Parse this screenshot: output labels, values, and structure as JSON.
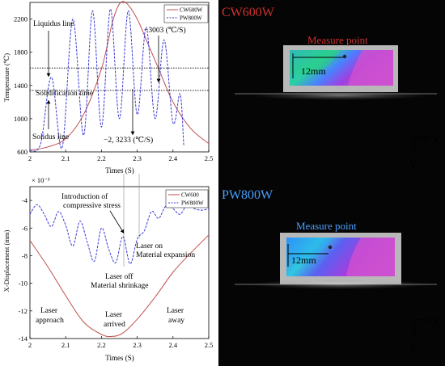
{
  "colors": {
    "cw": "#c0504d",
    "pw": "#3b3bd6",
    "cw_title": "#d03030",
    "pw_title": "#4aa0ff",
    "measure_top": "#d03030",
    "measure_bottom": "#4aa0ff"
  },
  "top_chart": {
    "ylabel": "Temperature (℃)",
    "xlabel": "Times (S)",
    "legend": [
      "CW600W",
      "PW800W"
    ],
    "annotations": {
      "liquidus": "Liquidus line",
      "solidification": "Solidification time",
      "solidus": "Solidus line",
      "rate_up": "−3003 (℃/S)",
      "rate_down": "−2, 3233 (℃/S)"
    }
  },
  "bottom_chart": {
    "exponent": "× 10⁻³",
    "ylabel": "X-Displacement (mm)",
    "xlabel": "Times (S)",
    "legend": [
      "CW600",
      "PW800W"
    ],
    "annotations": {
      "compressive_1": "Introduction of",
      "compressive_2": "compressive stress",
      "expansion_1": "Laser on",
      "expansion_2": "Material expansion",
      "shrinkage_1": "Laser off",
      "shrinkage_2": "Material shrinkage",
      "approach_1": "Laser",
      "approach_2": "approach",
      "arrived_1": "Laser",
      "arrived_2": "arrived",
      "away_1": "Laser",
      "away_2": "away"
    }
  },
  "right_top": {
    "title": "CW600W",
    "measure": "Measure point",
    "dimension": "12mm",
    "axis_x": "X",
    "axis_y": "Y"
  },
  "right_bottom": {
    "title": "PW800W",
    "measure": "Measure point",
    "dimension": "12mm",
    "axis_x": "X",
    "axis_y": "Y"
  },
  "chart_data": [
    {
      "type": "line",
      "xlabel": "Times (S)",
      "ylabel": "Temperature (℃)",
      "xlim": [
        2.0,
        2.5
      ],
      "ylim": [
        600,
        2400
      ],
      "xticks": [
        2,
        2.1,
        2.2,
        2.3,
        2.4,
        2.5
      ],
      "yticks": [
        600,
        1000,
        1400,
        1800,
        2200
      ],
      "reference_lines": {
        "liquidus": 1610,
        "solidus": 1340
      },
      "series": [
        {
          "name": "CW600W",
          "x": [
            2.0,
            2.05,
            2.1,
            2.15,
            2.2,
            2.23,
            2.25,
            2.27,
            2.3,
            2.33,
            2.36,
            2.4,
            2.45,
            2.5
          ],
          "y": [
            620,
            660,
            760,
            1050,
            1600,
            2150,
            2380,
            2390,
            2200,
            1900,
            1600,
            1200,
            880,
            700
          ]
        },
        {
          "name": "PW800W",
          "x": [
            2.0,
            2.03,
            2.06,
            2.09,
            2.12,
            2.15,
            2.175,
            2.2,
            2.225,
            2.25,
            2.275,
            2.3,
            2.325,
            2.35,
            2.375,
            2.4,
            2.42,
            2.43
          ],
          "y": [
            620,
            700,
            1500,
            650,
            2200,
            800,
            2300,
            900,
            2320,
            1000,
            2300,
            1050,
            2100,
            1000,
            1950,
            950,
            1300,
            680
          ]
        }
      ]
    },
    {
      "type": "line",
      "xlabel": "Times (S)",
      "ylabel": "X-Displacement (mm)",
      "y_multiplier": "1e-3",
      "xlim": [
        2.0,
        2.5
      ],
      "ylim": [
        -14,
        -3
      ],
      "xticks": [
        2,
        2.1,
        2.2,
        2.3,
        2.4,
        2.5
      ],
      "yticks": [
        -14,
        -12,
        -10,
        -8,
        -6,
        -4
      ],
      "series": [
        {
          "name": "CW600",
          "x": [
            2.0,
            2.05,
            2.1,
            2.15,
            2.2,
            2.23,
            2.26,
            2.3,
            2.35,
            2.4,
            2.45,
            2.5
          ],
          "y": [
            -6.9,
            -8.8,
            -10.9,
            -12.8,
            -13.7,
            -13.85,
            -13.6,
            -12.6,
            -11.0,
            -9.2,
            -7.8,
            -6.5
          ]
        },
        {
          "name": "PW800W",
          "x": [
            2.0,
            2.02,
            2.04,
            2.06,
            2.08,
            2.1,
            2.12,
            2.14,
            2.16,
            2.18,
            2.2,
            2.22,
            2.24,
            2.26,
            2.28,
            2.3,
            2.32,
            2.34,
            2.36,
            2.38,
            2.4,
            2.42,
            2.44,
            2.46,
            2.48,
            2.5
          ],
          "y": [
            -5.0,
            -4.3,
            -5.0,
            -5.9,
            -4.8,
            -5.8,
            -7.3,
            -5.5,
            -7.0,
            -8.4,
            -6.0,
            -7.5,
            -8.5,
            -6.6,
            -8.6,
            -6.8,
            -6.2,
            -4.8,
            -5.3,
            -4.4,
            -4.6,
            -5.0,
            -4.3,
            -4.6,
            -4.7,
            -4.6
          ]
        }
      ]
    }
  ]
}
